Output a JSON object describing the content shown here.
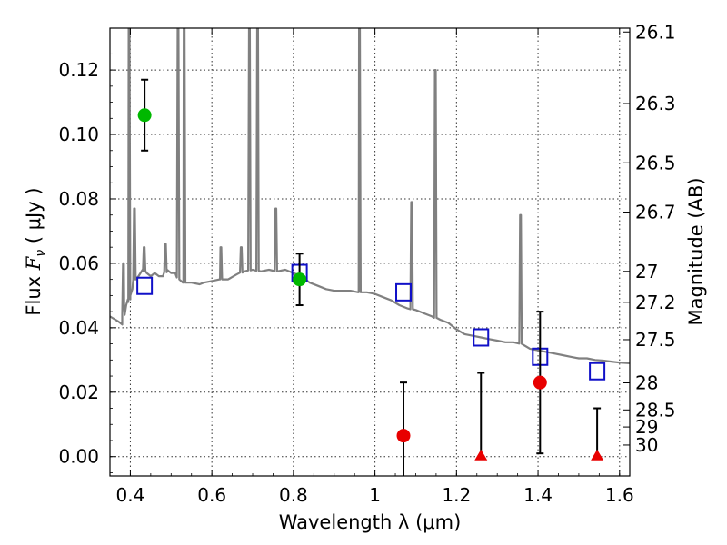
{
  "chart_data": {
    "type": "scatter",
    "xlabel": "Wavelength  λ (μm)",
    "ylabel": "Flux  F_ν  ( μJy )",
    "ylabel_parts": {
      "prefix": "Flux  ",
      "symbol": "F",
      "subscript": "ν",
      "suffix": "  (  μJy )"
    },
    "y2label": "Magnitude (AB)",
    "xlim": [
      0.35,
      1.625
    ],
    "ylim": [
      -0.006,
      0.133
    ],
    "grid": true,
    "x_ticks": [
      {
        "value": 0.4,
        "label": "0.4"
      },
      {
        "value": 0.6,
        "label": "0.6"
      },
      {
        "value": 0.8,
        "label": "0.8"
      },
      {
        "value": 1.0,
        "label": "1"
      },
      {
        "value": 1.2,
        "label": "1.2"
      },
      {
        "value": 1.4,
        "label": "1.4"
      },
      {
        "value": 1.6,
        "label": "1.6"
      }
    ],
    "y_ticks": [
      {
        "value": 0.0,
        "label": "0.00"
      },
      {
        "value": 0.02,
        "label": "0.02"
      },
      {
        "value": 0.04,
        "label": "0.04"
      },
      {
        "value": 0.06,
        "label": "0.06"
      },
      {
        "value": 0.08,
        "label": "0.08"
      },
      {
        "value": 0.1,
        "label": "0.10"
      },
      {
        "value": 0.12,
        "label": "0.12"
      }
    ],
    "y2_ticks": [
      {
        "flux": 0.1318,
        "label": "26.1"
      },
      {
        "flux": 0.1096,
        "label": "26.3"
      },
      {
        "flux": 0.0912,
        "label": "26.5"
      },
      {
        "flux": 0.0759,
        "label": "26.7"
      },
      {
        "flux": 0.0575,
        "label": "27"
      },
      {
        "flux": 0.0479,
        "label": "27.2"
      },
      {
        "flux": 0.0363,
        "label": "27.5"
      },
      {
        "flux": 0.0229,
        "label": "28"
      },
      {
        "flux": 0.0145,
        "label": "28.5"
      },
      {
        "flux": 0.0092,
        "label": "29"
      },
      {
        "flux": 0.0036,
        "label": "30"
      }
    ],
    "colors": {
      "template": "#808080",
      "model": "#1010c8",
      "detection": "#00b800",
      "low_sn": "#e80000",
      "errorbar": "#000000"
    },
    "template_spectrum": [
      [
        0.35,
        0.0435
      ],
      [
        0.37,
        0.042
      ],
      [
        0.38,
        0.041
      ],
      [
        0.385,
        0.046
      ],
      [
        0.39,
        0.047
      ],
      [
        0.395,
        0.048
      ],
      [
        0.4,
        0.05
      ],
      [
        0.405,
        0.052
      ],
      [
        0.41,
        0.055
      ],
      [
        0.42,
        0.056
      ],
      [
        0.43,
        0.058
      ],
      [
        0.44,
        0.057
      ],
      [
        0.45,
        0.056
      ],
      [
        0.46,
        0.057
      ],
      [
        0.47,
        0.056
      ],
      [
        0.48,
        0.056
      ],
      [
        0.49,
        0.058
      ],
      [
        0.5,
        0.057
      ],
      [
        0.51,
        0.057
      ],
      [
        0.52,
        0.055
      ],
      [
        0.53,
        0.054
      ],
      [
        0.55,
        0.054
      ],
      [
        0.57,
        0.0535
      ],
      [
        0.58,
        0.054
      ],
      [
        0.6,
        0.0545
      ],
      [
        0.62,
        0.055
      ],
      [
        0.64,
        0.055
      ],
      [
        0.66,
        0.0565
      ],
      [
        0.68,
        0.0575
      ],
      [
        0.7,
        0.058
      ],
      [
        0.72,
        0.0575
      ],
      [
        0.74,
        0.058
      ],
      [
        0.76,
        0.0575
      ],
      [
        0.78,
        0.058
      ],
      [
        0.8,
        0.057
      ],
      [
        0.82,
        0.056
      ],
      [
        0.84,
        0.054
      ],
      [
        0.86,
        0.053
      ],
      [
        0.88,
        0.052
      ],
      [
        0.9,
        0.0515
      ],
      [
        0.92,
        0.0515
      ],
      [
        0.94,
        0.0515
      ],
      [
        0.96,
        0.051
      ],
      [
        0.98,
        0.051
      ],
      [
        1.0,
        0.0505
      ],
      [
        1.02,
        0.0495
      ],
      [
        1.04,
        0.0485
      ],
      [
        1.06,
        0.047
      ],
      [
        1.08,
        0.046
      ],
      [
        1.1,
        0.0455
      ],
      [
        1.12,
        0.0445
      ],
      [
        1.14,
        0.0435
      ],
      [
        1.16,
        0.0425
      ],
      [
        1.18,
        0.0415
      ],
      [
        1.2,
        0.0395
      ],
      [
        1.22,
        0.038
      ],
      [
        1.24,
        0.0375
      ],
      [
        1.26,
        0.037
      ],
      [
        1.28,
        0.0365
      ],
      [
        1.3,
        0.036
      ],
      [
        1.32,
        0.0355
      ],
      [
        1.34,
        0.0355
      ],
      [
        1.36,
        0.035
      ],
      [
        1.38,
        0.0335
      ],
      [
        1.4,
        0.033
      ],
      [
        1.42,
        0.0325
      ],
      [
        1.44,
        0.032
      ],
      [
        1.46,
        0.0315
      ],
      [
        1.48,
        0.031
      ],
      [
        1.5,
        0.0305
      ],
      [
        1.52,
        0.0305
      ],
      [
        1.54,
        0.03
      ],
      [
        1.56,
        0.0298
      ],
      [
        1.58,
        0.0295
      ],
      [
        1.6,
        0.0292
      ],
      [
        1.625,
        0.029
      ]
    ],
    "emission_lines": [
      {
        "x": 0.383,
        "peak": 0.06
      },
      {
        "x": 0.397,
        "peak": 0.133
      },
      {
        "x": 0.41,
        "peak": 0.077
      },
      {
        "x": 0.434,
        "peak": 0.065
      },
      {
        "x": 0.486,
        "peak": 0.066
      },
      {
        "x": 0.517,
        "peak": 0.133
      },
      {
        "x": 0.532,
        "peak": 0.133
      },
      {
        "x": 0.622,
        "peak": 0.065
      },
      {
        "x": 0.672,
        "peak": 0.065
      },
      {
        "x": 0.692,
        "peak": 0.133
      },
      {
        "x": 0.712,
        "peak": 0.133
      },
      {
        "x": 0.757,
        "peak": 0.077
      },
      {
        "x": 0.962,
        "peak": 0.133
      },
      {
        "x": 1.09,
        "peak": 0.079
      },
      {
        "x": 1.148,
        "peak": 0.12
      },
      {
        "x": 1.357,
        "peak": 0.075
      }
    ],
    "model_fluxes": [
      {
        "x": 0.435,
        "y": 0.053
      },
      {
        "x": 0.815,
        "y": 0.057
      },
      {
        "x": 1.07,
        "y": 0.051
      },
      {
        "x": 1.26,
        "y": 0.037
      },
      {
        "x": 1.405,
        "y": 0.031
      },
      {
        "x": 1.545,
        "y": 0.0265
      }
    ],
    "detections": [
      {
        "x": 0.435,
        "y": 0.106,
        "err": 0.011
      },
      {
        "x": 0.815,
        "y": 0.055,
        "err": 0.008
      }
    ],
    "low_sn_points": [
      {
        "x": 1.07,
        "y": 0.0065,
        "err_up": 0.0165,
        "err_down": 0.02
      },
      {
        "x": 1.405,
        "y": 0.023,
        "err_up": 0.022,
        "err_down": 0.022
      }
    ],
    "upper_limits": [
      {
        "x": 1.26,
        "y": 0.0,
        "top": 0.026
      },
      {
        "x": 1.545,
        "y": 0.0,
        "top": 0.015
      }
    ]
  }
}
